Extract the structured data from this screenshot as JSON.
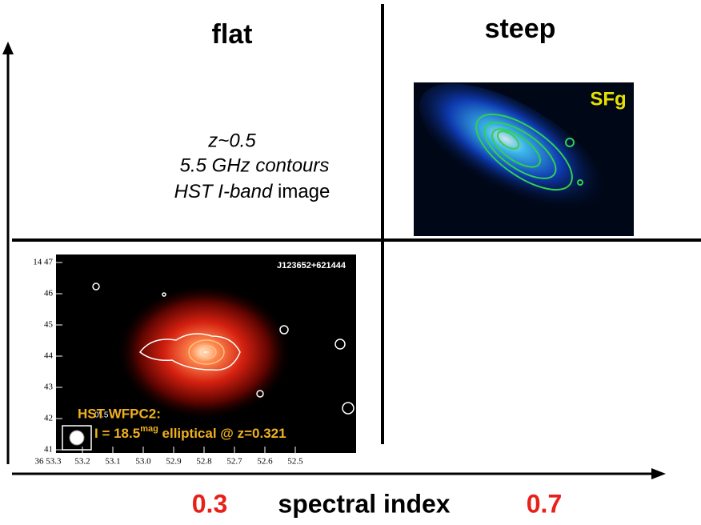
{
  "header": {
    "flat": "flat",
    "steep": "steep"
  },
  "caption": {
    "line1": "z~0.5",
    "line2": "5.5 GHz contours",
    "line3_italic": "HST I-band",
    "line3_rest": " image"
  },
  "image_sfg": {
    "label": "SFg"
  },
  "image_elliptical": {
    "id": "J123652+621444",
    "yticks": [
      "14 47",
      "46",
      "45",
      "44",
      "43",
      "42",
      "41"
    ],
    "xticks": [
      "36 53.3",
      "53.2",
      "53.1",
      "53.0",
      "52.9",
      "52.8",
      "52.7",
      "52.6",
      "52.5"
    ],
    "beam": "0\".5",
    "note_line1": "HST WFPC2:",
    "note_line2": [
      "I = 18.5",
      "mag",
      " elliptical @ z=0.321"
    ]
  },
  "axis": {
    "low": "0.3",
    "label": "spectral index",
    "high": "0.7"
  }
}
